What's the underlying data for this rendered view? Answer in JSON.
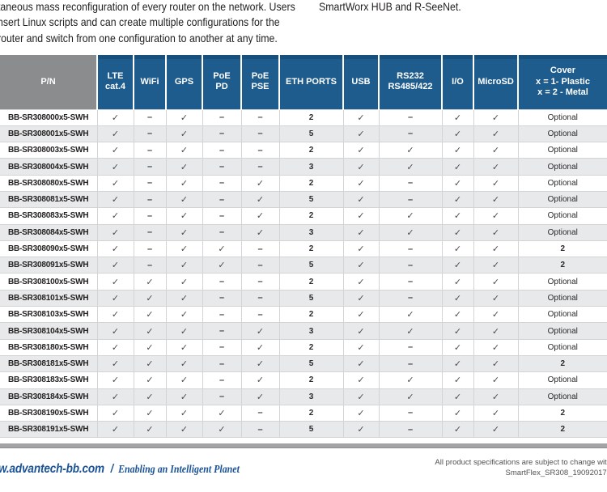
{
  "colors": {
    "header_blue": "#1e5c8d",
    "header_blue_strip": "#17507d",
    "header_gray": "#8a8c8e",
    "row_alt_gray": "#e8e9ea",
    "footer_blue": "#1a5296"
  },
  "intro": {
    "left_lines": [
      "taneous mass reconfiguration of every router on the network. Users",
      "nsert Linux scripts and can create multiple configurations for the",
      "router and switch from one configuration to another at any time."
    ],
    "right_line": "SmartWorx HUB and R-SeeNet."
  },
  "table": {
    "columns": [
      {
        "key": "pn",
        "label_lines": [
          "P/N"
        ]
      },
      {
        "key": "lte",
        "label_lines": [
          "LTE",
          "cat.4"
        ]
      },
      {
        "key": "wifi",
        "label_lines": [
          "WiFi"
        ]
      },
      {
        "key": "gps",
        "label_lines": [
          "GPS"
        ]
      },
      {
        "key": "poe_pd",
        "label_lines": [
          "PoE",
          "PD"
        ]
      },
      {
        "key": "poe_pse",
        "label_lines": [
          "PoE",
          "PSE"
        ]
      },
      {
        "key": "eth",
        "label_lines": [
          "ETH PORTS"
        ]
      },
      {
        "key": "usb",
        "label_lines": [
          "USB"
        ]
      },
      {
        "key": "rs232",
        "label_lines": [
          "RS232",
          "RS485/422"
        ]
      },
      {
        "key": "io",
        "label_lines": [
          "I/O"
        ]
      },
      {
        "key": "microsd",
        "label_lines": [
          "MicroSD"
        ]
      },
      {
        "key": "cover",
        "label_lines": [
          "Cover",
          "x = 1- Plastic",
          "x = 2 - Metal"
        ]
      }
    ],
    "rows": [
      [
        "BB-SR308000x5-SWH",
        "✓",
        "–",
        "✓",
        "–",
        "–",
        "2",
        "✓",
        "–",
        "✓",
        "✓",
        "Optional"
      ],
      [
        "BB-SR308001x5-SWH",
        "✓",
        "–",
        "✓",
        "–",
        "–",
        "5",
        "✓",
        "–",
        "✓",
        "✓",
        "Optional"
      ],
      [
        "BB-SR308003x5-SWH",
        "✓",
        "–",
        "✓",
        "–",
        "–",
        "2",
        "✓",
        "✓",
        "✓",
        "✓",
        "Optional"
      ],
      [
        "BB-SR308004x5-SWH",
        "✓",
        "–",
        "✓",
        "–",
        "–",
        "3",
        "✓",
        "✓",
        "✓",
        "✓",
        "Optional"
      ],
      [
        "BB-SR308080x5-SWH",
        "✓",
        "–",
        "✓",
        "–",
        "✓",
        "2",
        "✓",
        "–",
        "✓",
        "✓",
        "Optional"
      ],
      [
        "BB-SR308081x5-SWH",
        "✓",
        "–",
        "✓",
        "–",
        "✓",
        "5",
        "✓",
        "–",
        "✓",
        "✓",
        "Optional"
      ],
      [
        "BB-SR308083x5-SWH",
        "✓",
        "–",
        "✓",
        "–",
        "✓",
        "2",
        "✓",
        "✓",
        "✓",
        "✓",
        "Optional"
      ],
      [
        "BB-SR308084x5-SWH",
        "✓",
        "–",
        "✓",
        "–",
        "✓",
        "3",
        "✓",
        "✓",
        "✓",
        "✓",
        "Optional"
      ],
      [
        "BB-SR308090x5-SWH",
        "✓",
        "–",
        "✓",
        "✓",
        "–",
        "2",
        "✓",
        "–",
        "✓",
        "✓",
        "2"
      ],
      [
        "BB-SR308091x5-SWH",
        "✓",
        "–",
        "✓",
        "✓",
        "–",
        "5",
        "✓",
        "–",
        "✓",
        "✓",
        "2"
      ],
      [
        "BB-SR308100x5-SWH",
        "✓",
        "✓",
        "✓",
        "–",
        "–",
        "2",
        "✓",
        "–",
        "✓",
        "✓",
        "Optional"
      ],
      [
        "BB-SR308101x5-SWH",
        "✓",
        "✓",
        "✓",
        "–",
        "–",
        "5",
        "✓",
        "–",
        "✓",
        "✓",
        "Optional"
      ],
      [
        "BB-SR308103x5-SWH",
        "✓",
        "✓",
        "✓",
        "–",
        "–",
        "2",
        "✓",
        "✓",
        "✓",
        "✓",
        "Optional"
      ],
      [
        "BB-SR308104x5-SWH",
        "✓",
        "✓",
        "✓",
        "–",
        "✓",
        "3",
        "✓",
        "✓",
        "✓",
        "✓",
        "Optional"
      ],
      [
        "BB-SR308180x5-SWH",
        "✓",
        "✓",
        "✓",
        "–",
        "✓",
        "2",
        "✓",
        "–",
        "✓",
        "✓",
        "Optional"
      ],
      [
        "BB-SR308181x5-SWH",
        "✓",
        "✓",
        "✓",
        "–",
        "✓",
        "5",
        "✓",
        "–",
        "✓",
        "✓",
        "2"
      ],
      [
        "BB-SR308183x5-SWH",
        "✓",
        "✓",
        "✓",
        "–",
        "✓",
        "2",
        "✓",
        "✓",
        "✓",
        "✓",
        "Optional"
      ],
      [
        "BB-SR308184x5-SWH",
        "✓",
        "✓",
        "✓",
        "–",
        "✓",
        "3",
        "✓",
        "✓",
        "✓",
        "✓",
        "Optional"
      ],
      [
        "BB-SR308190x5-SWH",
        "✓",
        "✓",
        "✓",
        "✓",
        "–",
        "2",
        "✓",
        "–",
        "✓",
        "✓",
        "2"
      ],
      [
        "BB-SR308191x5-SWH",
        "✓",
        "✓",
        "✓",
        "✓",
        "–",
        "5",
        "✓",
        "–",
        "✓",
        "✓",
        "2"
      ]
    ]
  },
  "footer": {
    "url": "w.advantech-bb.com",
    "slash": "/",
    "tagline": "Enabling an Intelligent Planet",
    "note_line1": "All product specifications are subject to change with",
    "note_line2": "SmartFlex_SR308_19092017d"
  }
}
